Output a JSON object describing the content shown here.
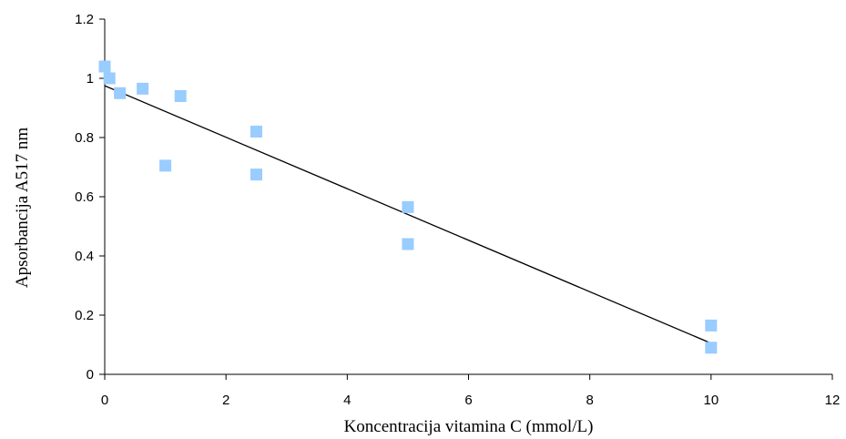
{
  "chart_data": {
    "type": "scatter",
    "title": "",
    "xlabel": "Koncentracija vitamina C (mmol/L)",
    "ylabel": "Apsorbancija A517 nm",
    "xlim": [
      0,
      12
    ],
    "ylim": [
      0,
      1.2
    ],
    "x_ticks": [
      "0",
      "2",
      "4",
      "6",
      "8",
      "10",
      "12"
    ],
    "y_ticks": [
      "0",
      "0.2",
      "0.4",
      "0.6",
      "0.8",
      "1",
      "1.2"
    ],
    "grid": false,
    "legend": "none",
    "series": [
      {
        "marker": "square",
        "color": "#99CCFF",
        "x": [
          0,
          0.078,
          0.25,
          0.625,
          1.0,
          1.25,
          2.5,
          2.5,
          5.0,
          5.0,
          10.0,
          10.0
        ],
        "y": [
          1.04,
          1.0,
          0.95,
          0.965,
          0.705,
          0.94,
          0.82,
          0.675,
          0.565,
          0.44,
          0.165,
          0.09
        ]
      }
    ],
    "trendline": {
      "type": "linear",
      "color": "#000000",
      "x": [
        0,
        10
      ],
      "y": [
        0.975,
        0.105
      ]
    }
  }
}
